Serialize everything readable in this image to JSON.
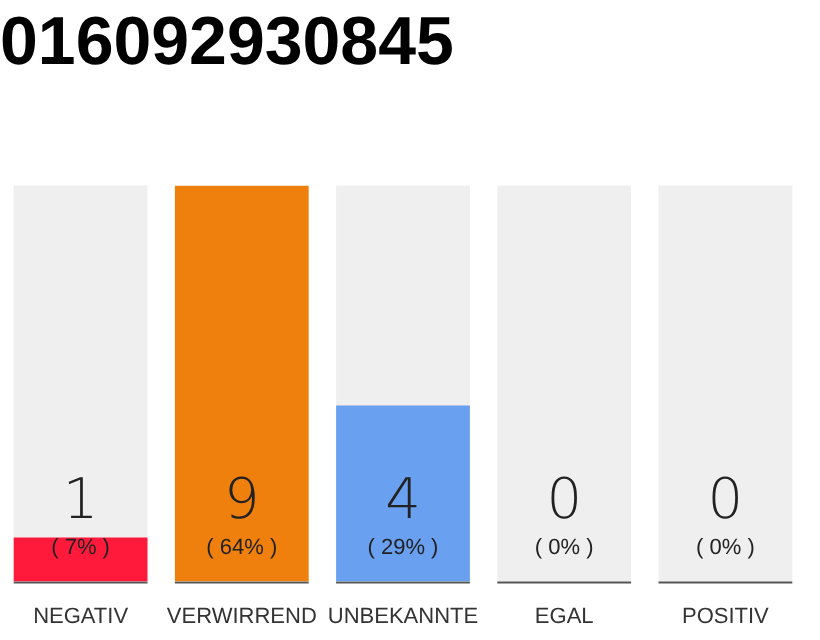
{
  "chart_data": {
    "type": "bar",
    "title": "016092930845",
    "categories": [
      "NEGATIV",
      "VERWIRREND",
      "UNBEKANNTE",
      "EGAL",
      "POSITIV"
    ],
    "values": [
      1,
      9,
      4,
      0,
      0
    ],
    "colors": [
      "#ff1a3c",
      "#f0800e",
      "#6aa0f0",
      "#cccccc",
      "#cccccc"
    ],
    "bands": [
      {
        "axis": "x",
        "from": "NEGATIV",
        "to": "NEGATIV",
        "color": "#efefef"
      },
      {
        "axis": "x",
        "from": "UNBEKANNTE",
        "to": "UNBEKANNTE",
        "color": "#efefef"
      },
      {
        "axis": "x",
        "from": "EGAL",
        "to": "EGAL",
        "color": "#efefef"
      },
      {
        "axis": "x",
        "from": "POSITIV",
        "to": "POSITIV",
        "color": "#efefef"
      }
    ],
    "tick_labels": "x",
    "grid": false,
    "legend": false,
    "value_labels": [
      "1\n( 7% )",
      "9\n( 64% )",
      "4\n( 29% )",
      "0\n( 0% )",
      "0\n( 0% )"
    ]
  }
}
